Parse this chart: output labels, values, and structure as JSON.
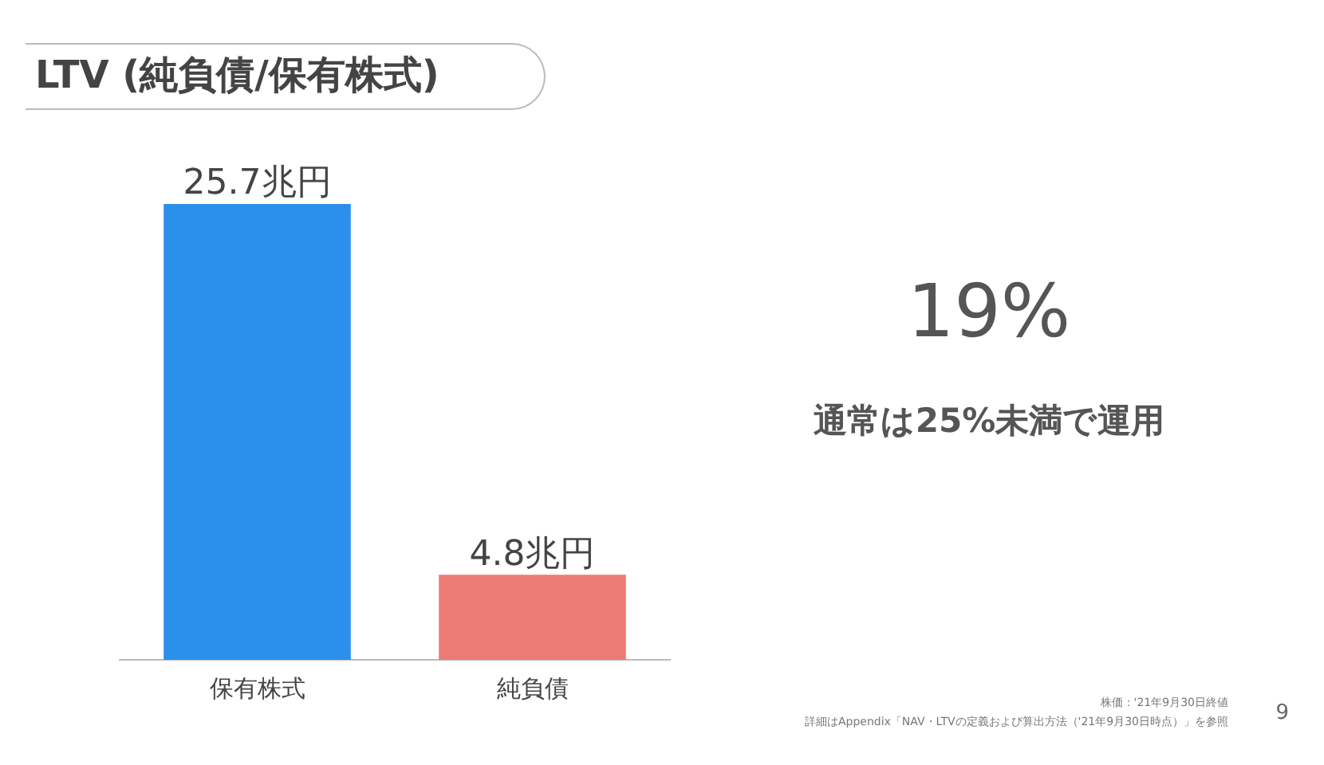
{
  "chart_data": {
    "type": "bar",
    "title": "LTV (純負債/保有株式)",
    "categories": [
      "保有株式",
      "純負債"
    ],
    "values": [
      25.7,
      4.8
    ],
    "colors": [
      "#2b8fec",
      "#ec7b76"
    ],
    "value_labels": [
      "25.7兆円",
      "4.8兆円"
    ],
    "legend": false,
    "grid": false,
    "annotations": [
      "19%",
      "通常は25%未満で運用",
      "株価：'21年9月30日終値",
      "詳細はAppendix「NAV・LTVの定義および算出方法（'21年9月30日時点）」を参照",
      "9"
    ]
  }
}
